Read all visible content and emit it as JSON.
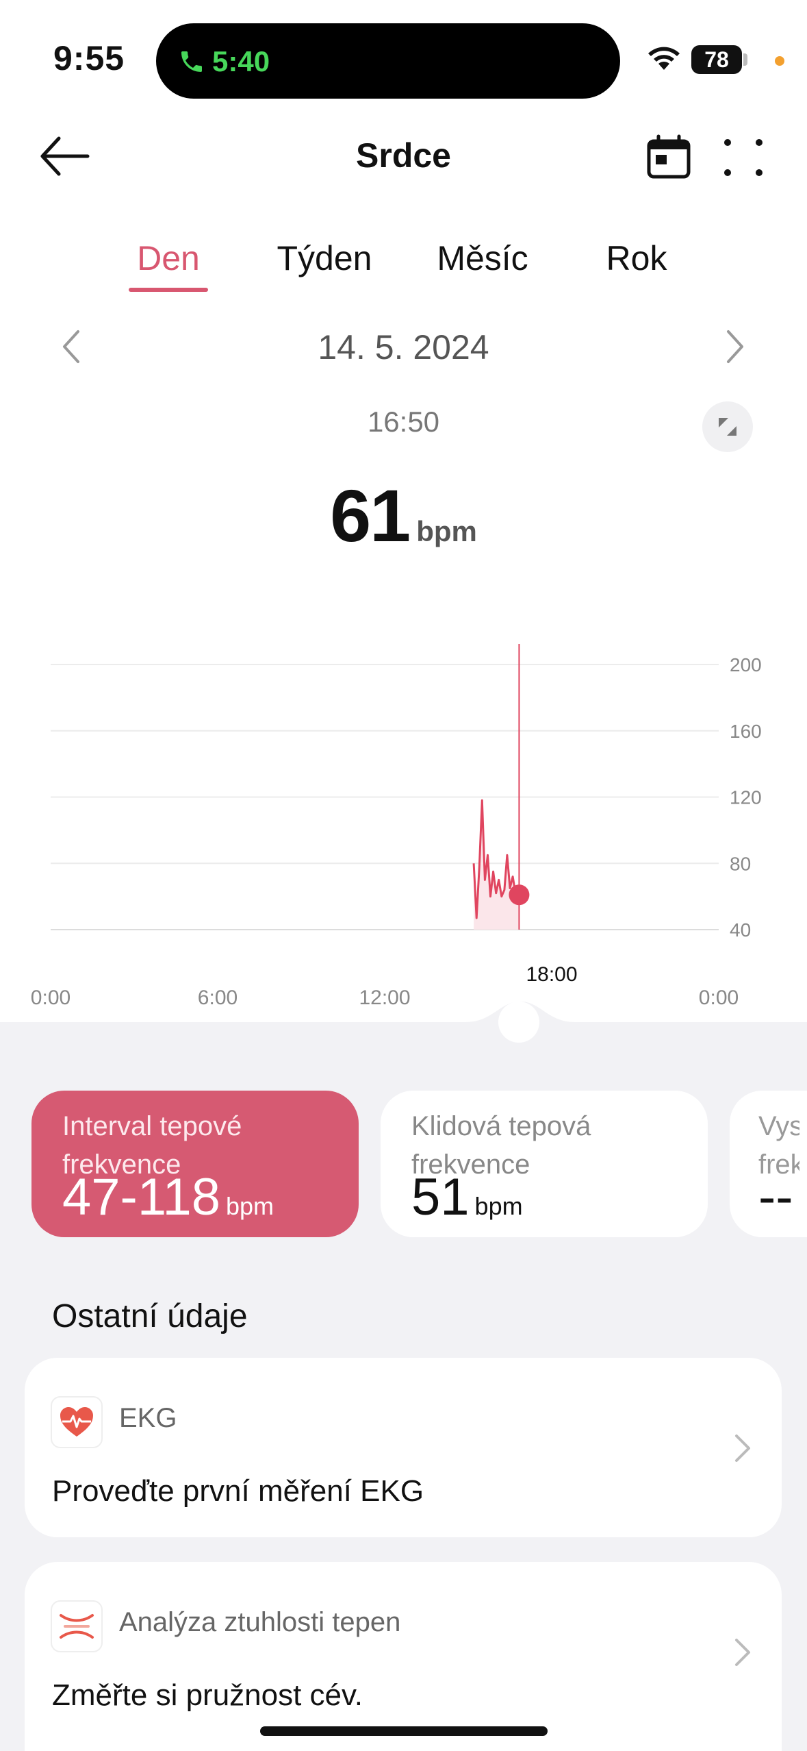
{
  "status_bar": {
    "time": "9:55",
    "call_time": "5:40",
    "battery": "78"
  },
  "header": {
    "title": "Srdce"
  },
  "tabs": [
    {
      "label": "Den",
      "active": true
    },
    {
      "label": "Týden",
      "active": false
    },
    {
      "label": "Měsíc",
      "active": false
    },
    {
      "label": "Rok",
      "active": false
    }
  ],
  "date_nav": {
    "date": "14. 5. 2024"
  },
  "reading": {
    "time": "16:50",
    "value": "61",
    "unit": "bpm"
  },
  "chart_data": {
    "type": "line",
    "ylim": [
      40,
      200
    ],
    "y_ticks": [
      "200",
      "160",
      "120",
      "80",
      "40"
    ],
    "x_ticks": [
      "0:00",
      "6:00",
      "12:00",
      "0:00"
    ],
    "highlight_x_label": "18:00",
    "series": [
      {
        "x": [
          15.2,
          15.3,
          15.4,
          15.5,
          15.6,
          15.7,
          15.8,
          15.9,
          16.0,
          16.1,
          16.2,
          16.3,
          16.4,
          16.5,
          16.6,
          16.7,
          16.83
        ],
        "y": [
          80,
          47,
          78,
          118,
          70,
          85,
          60,
          75,
          62,
          70,
          60,
          64,
          85,
          65,
          72,
          62,
          61
        ]
      }
    ],
    "selected": {
      "x": 16.83,
      "y": 61
    },
    "line_color": "#e0455f",
    "fill_color": "#fbe6ea"
  },
  "stats": [
    {
      "title": "Interval tepové frekvence",
      "value": "47-118",
      "unit": "bpm",
      "active": true
    },
    {
      "title": "Klidová tepová frekvence",
      "value": "51",
      "unit": "bpm",
      "active": false
    },
    {
      "title": "Vys frek",
      "value": "--",
      "unit": "",
      "active": false
    }
  ],
  "other": {
    "title": "Ostatní údaje",
    "items": [
      {
        "label": "EKG",
        "text": "Proveďte první měření EKG",
        "icon": "heart-ecg-icon"
      },
      {
        "label": "Analýza ztuhlosti tepen",
        "text": "Změřte si pružnost cév.",
        "icon": "artery-icon"
      }
    ]
  },
  "colors": {
    "accent": "#d85770",
    "card_active": "#d65a72",
    "background_gray": "#f2f2f5"
  }
}
